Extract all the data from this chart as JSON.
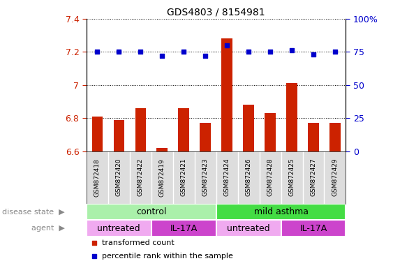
{
  "title": "GDS4803 / 8154981",
  "samples": [
    "GSM872418",
    "GSM872420",
    "GSM872422",
    "GSM872419",
    "GSM872421",
    "GSM872423",
    "GSM872424",
    "GSM872426",
    "GSM872428",
    "GSM872425",
    "GSM872427",
    "GSM872429"
  ],
  "transformed_counts": [
    6.81,
    6.79,
    6.86,
    6.62,
    6.86,
    6.77,
    7.28,
    6.88,
    6.83,
    7.01,
    6.77,
    6.77
  ],
  "percentile_ranks": [
    75,
    75,
    75,
    72,
    75,
    72,
    80,
    75,
    75,
    76,
    73,
    75
  ],
  "ylim_left": [
    6.6,
    7.4
  ],
  "ylim_right": [
    0,
    100
  ],
  "yticks_left": [
    6.6,
    6.8,
    7.0,
    7.2,
    7.4
  ],
  "yticks_right": [
    0,
    25,
    50,
    75,
    100
  ],
  "bar_color": "#cc2200",
  "dot_color": "#0000cc",
  "disease_state_groups": [
    {
      "label": "control",
      "start": 0,
      "end": 6,
      "color": "#aaf0aa"
    },
    {
      "label": "mild asthma",
      "start": 6,
      "end": 12,
      "color": "#44dd44"
    }
  ],
  "agent_groups": [
    {
      "label": "untreated",
      "start": 0,
      "end": 3,
      "color": "#f0aaf0"
    },
    {
      "label": "IL-17A",
      "start": 3,
      "end": 6,
      "color": "#cc44cc"
    },
    {
      "label": "untreated",
      "start": 6,
      "end": 9,
      "color": "#f0aaf0"
    },
    {
      "label": "IL-17A",
      "start": 9,
      "end": 12,
      "color": "#cc44cc"
    }
  ],
  "legend_items": [
    {
      "label": "transformed count",
      "color": "#cc2200"
    },
    {
      "label": "percentile rank within the sample",
      "color": "#0000cc"
    }
  ],
  "disease_state_label": "disease state",
  "agent_label": "agent",
  "bar_width": 0.5,
  "xtick_bg_color": "#dddddd",
  "left_label_color": "#888888"
}
